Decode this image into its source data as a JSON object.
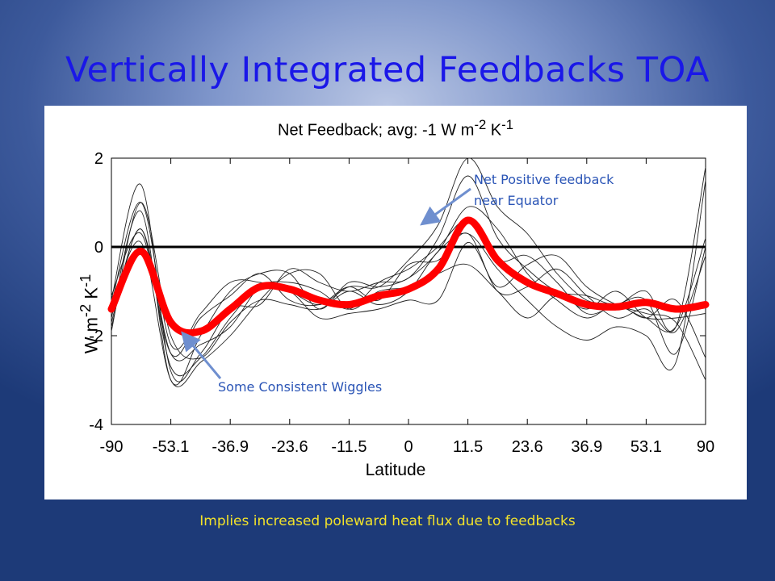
{
  "slide": {
    "title": "Vertically Integrated Feedbacks TOA",
    "footer": "Implies increased poleward heat flux due to feedbacks"
  },
  "annotations": {
    "net_positive": [
      "Net Positive feedback",
      "near Equator"
    ],
    "wiggles": "Some Consistent Wiggles",
    "arrow_color": "#6f8fcf"
  },
  "chart_data": {
    "type": "line",
    "title_parts": [
      "Net Feedback; avg: -1 W m",
      "-2",
      " K",
      "-1"
    ],
    "xlabel": "Latitude",
    "ylabel_parts": [
      "W m",
      "-2",
      " K",
      "-1"
    ],
    "x_ticks": [
      "-90",
      "-53.1",
      "-36.9",
      "-23.6",
      "-11.5",
      "0",
      "11.5",
      "23.6",
      "36.9",
      "53.1",
      "90"
    ],
    "y_ticks": [
      "2",
      "0",
      "-2",
      "-4"
    ],
    "ylim": [
      -4,
      2
    ],
    "grid": false,
    "reference_line": {
      "y": 0,
      "color": "#000000"
    },
    "x_positions": [
      0,
      0.05,
      0.1,
      0.15,
      0.2,
      0.25,
      0.3,
      0.35,
      0.4,
      0.45,
      0.5,
      0.55,
      0.6,
      0.65,
      0.7,
      0.75,
      0.8,
      0.85,
      0.9,
      0.95,
      1.0
    ],
    "mean_series": {
      "color": "#ff0000",
      "values": [
        -1.4,
        -0.1,
        -1.7,
        -1.9,
        -1.4,
        -0.9,
        -0.95,
        -1.2,
        -1.3,
        -1.1,
        -0.95,
        -0.5,
        0.6,
        -0.3,
        -0.8,
        -1.05,
        -1.3,
        -1.35,
        -1.25,
        -1.4,
        -1.3
      ]
    },
    "model_series": [
      {
        "color": "#222222",
        "values": [
          -1.2,
          1.4,
          -2.8,
          -2.4,
          -1.4,
          -1.3,
          -0.5,
          -0.8,
          -1.0,
          -0.8,
          -0.7,
          0.2,
          1.6,
          0.2,
          -0.5,
          -1.0,
          -1.1,
          -1.3,
          -1.0,
          -1.8,
          1.8
        ]
      },
      {
        "color": "#222222",
        "values": [
          -1.6,
          0.8,
          -3.0,
          -2.0,
          -1.0,
          -0.6,
          -0.6,
          -1.4,
          -0.8,
          -0.9,
          -0.7,
          -0.1,
          0.9,
          0.4,
          -0.6,
          -1.2,
          -1.6,
          -1.3,
          -1.6,
          -1.2,
          -2.5
        ]
      },
      {
        "color": "#222222",
        "values": [
          -1.1,
          0.3,
          -2.4,
          -1.6,
          -1.1,
          -0.6,
          -1.2,
          -1.3,
          -0.9,
          -1.2,
          -0.4,
          -0.3,
          0.3,
          -1.0,
          -0.9,
          -0.5,
          -1.1,
          -1.6,
          -1.4,
          -1.9,
          -0.2
        ]
      },
      {
        "color": "#222222",
        "values": [
          -1.8,
          0.4,
          -2.7,
          -2.5,
          -1.6,
          -0.9,
          -1.0,
          -1.6,
          -1.5,
          -1.4,
          -1.2,
          -1.2,
          0.1,
          -0.9,
          -0.4,
          -0.2,
          -0.9,
          -1.3,
          -1.5,
          -1.7,
          -3.0
        ]
      },
      {
        "color": "#222222",
        "values": [
          -1.3,
          1.0,
          -2.2,
          -1.5,
          -0.8,
          -0.8,
          -1.0,
          -1.3,
          -0.9,
          -0.9,
          -0.3,
          0.5,
          2.0,
          0.9,
          0.3,
          -0.6,
          -1.2,
          -1.3,
          -1.6,
          -1.6,
          -1.5
        ]
      },
      {
        "color": "#222222",
        "values": [
          -1.7,
          0.4,
          -2.4,
          -2.2,
          -1.8,
          -0.9,
          -0.8,
          -1.0,
          -1.4,
          -0.8,
          -0.5,
          0.0,
          0.6,
          -0.3,
          -0.2,
          -0.8,
          -1.5,
          -1.3,
          -1.2,
          -2.4,
          0.0
        ]
      },
      {
        "color": "#222222",
        "values": [
          -1.4,
          0.1,
          -3.0,
          -2.6,
          -2.0,
          -1.2,
          -0.6,
          -0.6,
          -1.4,
          -1.0,
          -0.9,
          -0.6,
          -0.4,
          -1.0,
          -1.6,
          -1.1,
          -1.4,
          -1.0,
          -1.6,
          -1.8,
          0.2
        ]
      },
      {
        "color": "#222222",
        "values": [
          -1.9,
          1.0,
          -2.0,
          -2.5,
          -1.7,
          -1.2,
          -1.3,
          -1.4,
          -1.0,
          -1.3,
          -1.0,
          -0.1,
          0.3,
          -0.5,
          -1.2,
          -1.8,
          -2.1,
          -1.8,
          -2.0,
          -2.6,
          1.5
        ]
      }
    ]
  }
}
